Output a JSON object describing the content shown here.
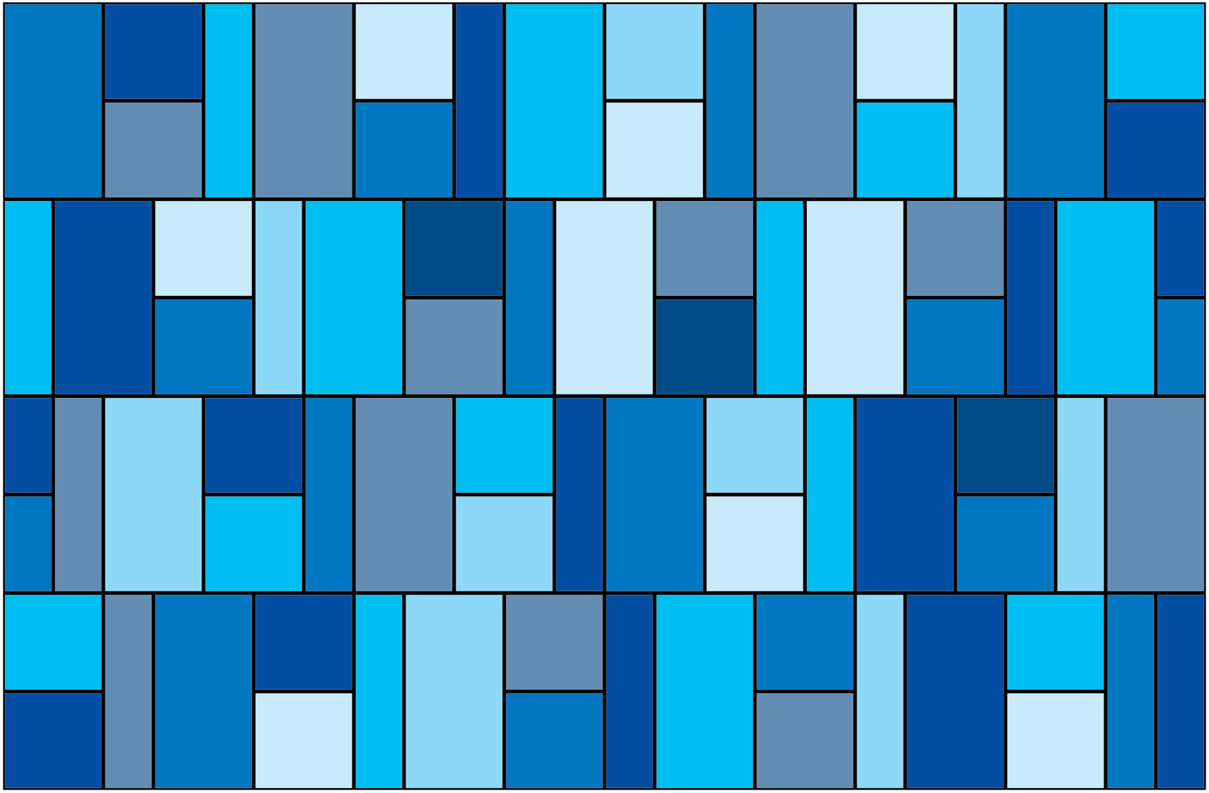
{
  "palette": {
    "A": "#0077C0",
    "B": "#034EA2",
    "C": "#00BEF2",
    "D": "#648DB3",
    "E": "#C8EAFB",
    "F": "#8DD8F8",
    "G": "#004B87",
    "grout": "#000000"
  },
  "rows": [
    [
      {
        "kind": "wide",
        "colors": [
          "A"
        ]
      },
      {
        "kind": "wide",
        "colors": [
          "B",
          "D"
        ]
      },
      {
        "kind": "narrow",
        "colors": [
          "C"
        ]
      },
      {
        "kind": "wide",
        "colors": [
          "D"
        ]
      },
      {
        "kind": "wide",
        "colors": [
          "E",
          "A"
        ]
      },
      {
        "kind": "narrow",
        "colors": [
          "B"
        ]
      },
      {
        "kind": "wide",
        "colors": [
          "C"
        ]
      },
      {
        "kind": "wide",
        "colors": [
          "F",
          "E"
        ]
      },
      {
        "kind": "narrow",
        "colors": [
          "A"
        ]
      },
      {
        "kind": "wide",
        "colors": [
          "D"
        ]
      },
      {
        "kind": "wide",
        "colors": [
          "E",
          "C"
        ]
      },
      {
        "kind": "narrow",
        "colors": [
          "F"
        ]
      },
      {
        "kind": "wide",
        "colors": [
          "A"
        ]
      },
      {
        "kind": "wide",
        "colors": [
          "C",
          "B"
        ]
      }
    ],
    [
      {
        "kind": "narrow",
        "colors": [
          "C"
        ]
      },
      {
        "kind": "wide",
        "colors": [
          "B"
        ]
      },
      {
        "kind": "wide",
        "colors": [
          "E",
          "A"
        ]
      },
      {
        "kind": "narrow",
        "colors": [
          "F"
        ]
      },
      {
        "kind": "wide",
        "colors": [
          "C"
        ]
      },
      {
        "kind": "wide",
        "colors": [
          "G",
          "D"
        ]
      },
      {
        "kind": "narrow",
        "colors": [
          "A"
        ]
      },
      {
        "kind": "wide",
        "colors": [
          "E"
        ]
      },
      {
        "kind": "wide",
        "colors": [
          "D",
          "G"
        ]
      },
      {
        "kind": "narrow",
        "colors": [
          "C"
        ]
      },
      {
        "kind": "wide",
        "colors": [
          "E"
        ]
      },
      {
        "kind": "wide",
        "colors": [
          "D",
          "A"
        ]
      },
      {
        "kind": "narrow",
        "colors": [
          "B"
        ]
      },
      {
        "kind": "wide",
        "colors": [
          "C"
        ]
      },
      {
        "kind": "narrow",
        "colors": [
          "B",
          "A"
        ]
      }
    ],
    [
      {
        "kind": "narrow",
        "colors": [
          "B",
          "A"
        ]
      },
      {
        "kind": "narrow",
        "colors": [
          "D"
        ]
      },
      {
        "kind": "wide",
        "colors": [
          "F"
        ]
      },
      {
        "kind": "wide",
        "colors": [
          "B",
          "C"
        ]
      },
      {
        "kind": "narrow",
        "colors": [
          "A"
        ]
      },
      {
        "kind": "wide",
        "colors": [
          "D"
        ]
      },
      {
        "kind": "wide",
        "colors": [
          "C",
          "F"
        ]
      },
      {
        "kind": "narrow",
        "colors": [
          "B"
        ]
      },
      {
        "kind": "wide",
        "colors": [
          "A"
        ]
      },
      {
        "kind": "wide",
        "colors": [
          "F",
          "E"
        ]
      },
      {
        "kind": "narrow",
        "colors": [
          "C"
        ]
      },
      {
        "kind": "wide",
        "colors": [
          "B"
        ]
      },
      {
        "kind": "wide",
        "colors": [
          "G",
          "A"
        ]
      },
      {
        "kind": "narrow",
        "colors": [
          "F"
        ]
      },
      {
        "kind": "wide",
        "colors": [
          "D"
        ]
      }
    ],
    [
      {
        "kind": "wide",
        "colors": [
          "C",
          "B"
        ]
      },
      {
        "kind": "narrow",
        "colors": [
          "D"
        ]
      },
      {
        "kind": "wide",
        "colors": [
          "A"
        ]
      },
      {
        "kind": "wide",
        "colors": [
          "B",
          "E"
        ]
      },
      {
        "kind": "narrow",
        "colors": [
          "C"
        ]
      },
      {
        "kind": "wide",
        "colors": [
          "F"
        ]
      },
      {
        "kind": "wide",
        "colors": [
          "D",
          "A"
        ]
      },
      {
        "kind": "narrow",
        "colors": [
          "B"
        ]
      },
      {
        "kind": "wide",
        "colors": [
          "C"
        ]
      },
      {
        "kind": "wide",
        "colors": [
          "A",
          "D"
        ]
      },
      {
        "kind": "narrow",
        "colors": [
          "F"
        ]
      },
      {
        "kind": "wide",
        "colors": [
          "B"
        ]
      },
      {
        "kind": "wide",
        "colors": [
          "C",
          "E"
        ]
      },
      {
        "kind": "narrow",
        "colors": [
          "A"
        ]
      },
      {
        "kind": "narrow",
        "colors": [
          "B"
        ]
      }
    ]
  ]
}
